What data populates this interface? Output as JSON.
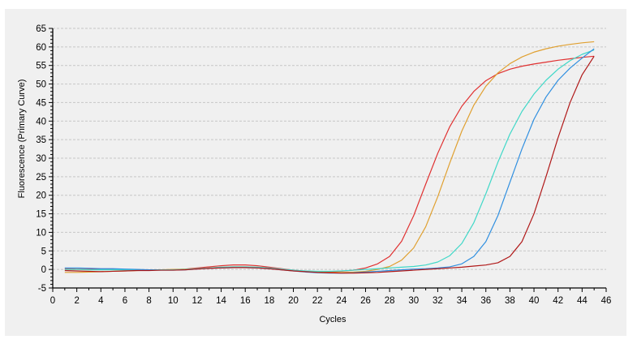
{
  "chart_data": {
    "type": "line",
    "title": "",
    "xlabel": "Cycles",
    "ylabel": "Fluorescence (Primary Curve)",
    "xlim": [
      0,
      46
    ],
    "ylim": [
      -5,
      65
    ],
    "x_ticks": [
      0,
      2,
      4,
      6,
      8,
      10,
      12,
      14,
      16,
      18,
      20,
      22,
      24,
      26,
      28,
      30,
      32,
      34,
      36,
      38,
      40,
      42,
      44,
      46
    ],
    "y_ticks": [
      -5,
      0,
      5,
      10,
      15,
      20,
      25,
      30,
      35,
      40,
      45,
      50,
      55,
      60,
      65
    ],
    "grid": "horizontal dashed",
    "legend": "none",
    "x": [
      1,
      2,
      3,
      4,
      5,
      6,
      7,
      8,
      9,
      10,
      11,
      12,
      13,
      14,
      15,
      16,
      17,
      18,
      19,
      20,
      21,
      22,
      23,
      24,
      25,
      26,
      27,
      28,
      29,
      30,
      31,
      32,
      33,
      34,
      35,
      36,
      37,
      38,
      39,
      40,
      41,
      42,
      43,
      44,
      45
    ],
    "series": [
      {
        "color": "#e03030",
        "values": [
          0.2,
          0.1,
          0.0,
          0.0,
          0.0,
          -0.1,
          -0.1,
          -0.1,
          -0.1,
          -0.1,
          0.1,
          0.4,
          0.7,
          1.0,
          1.2,
          1.2,
          1.0,
          0.6,
          0.2,
          -0.2,
          -0.5,
          -0.7,
          -0.7,
          -0.5,
          -0.2,
          0.4,
          1.5,
          3.5,
          7.6,
          14.5,
          23.0,
          31.3,
          38.5,
          44.0,
          48.0,
          50.9,
          52.8,
          54.0,
          54.8,
          55.4,
          55.9,
          56.4,
          56.8,
          57.2,
          57.5
        ]
      },
      {
        "color": "#e0a030",
        "values": [
          -0.8,
          -0.8,
          -0.7,
          -0.6,
          -0.5,
          -0.4,
          -0.3,
          -0.2,
          -0.1,
          0.0,
          0.1,
          0.2,
          0.4,
          0.6,
          0.7,
          0.7,
          0.6,
          0.3,
          0.0,
          -0.3,
          -0.5,
          -0.7,
          -0.8,
          -0.8,
          -0.7,
          -0.5,
          0.0,
          0.8,
          2.5,
          5.8,
          11.5,
          19.6,
          28.7,
          37.3,
          44.3,
          49.4,
          53.0,
          55.5,
          57.3,
          58.6,
          59.5,
          60.2,
          60.7,
          61.1,
          61.4
        ]
      },
      {
        "color": "#40d8c8",
        "values": [
          0.0,
          0.0,
          -0.1,
          -0.1,
          -0.1,
          -0.1,
          -0.1,
          -0.1,
          -0.1,
          -0.1,
          0.0,
          0.2,
          0.4,
          0.6,
          0.7,
          0.7,
          0.6,
          0.4,
          0.1,
          -0.2,
          -0.4,
          -0.5,
          -0.5,
          -0.4,
          -0.2,
          0.0,
          0.2,
          0.4,
          0.6,
          0.8,
          1.2,
          2.0,
          3.7,
          7.0,
          12.6,
          20.4,
          28.9,
          36.5,
          42.6,
          47.3,
          51.0,
          54.0,
          56.3,
          58.0,
          59.2
        ]
      },
      {
        "color": "#2f8fe0",
        "values": [
          0.4,
          0.4,
          0.3,
          0.2,
          0.2,
          0.1,
          0.0,
          -0.1,
          -0.2,
          -0.2,
          -0.1,
          0.1,
          0.3,
          0.4,
          0.5,
          0.5,
          0.4,
          0.2,
          -0.1,
          -0.4,
          -0.7,
          -0.9,
          -1.0,
          -1.0,
          -0.9,
          -0.7,
          -0.5,
          -0.3,
          -0.1,
          0.1,
          0.2,
          0.4,
          0.7,
          1.5,
          3.5,
          7.5,
          14.5,
          23.5,
          32.5,
          40.5,
          46.5,
          51.0,
          54.3,
          57.0,
          59.5
        ]
      },
      {
        "color": "#b01818",
        "values": [
          -0.3,
          -0.4,
          -0.5,
          -0.6,
          -0.5,
          -0.4,
          -0.3,
          -0.3,
          -0.2,
          -0.2,
          -0.1,
          0.1,
          0.3,
          0.4,
          0.5,
          0.5,
          0.4,
          0.2,
          -0.1,
          -0.4,
          -0.6,
          -0.8,
          -0.9,
          -1.0,
          -1.0,
          -0.9,
          -0.8,
          -0.6,
          -0.4,
          -0.2,
          0.0,
          0.2,
          0.4,
          0.6,
          0.9,
          1.2,
          1.8,
          3.5,
          7.5,
          15.0,
          25.0,
          35.5,
          45.0,
          52.5,
          57.5
        ]
      }
    ]
  }
}
